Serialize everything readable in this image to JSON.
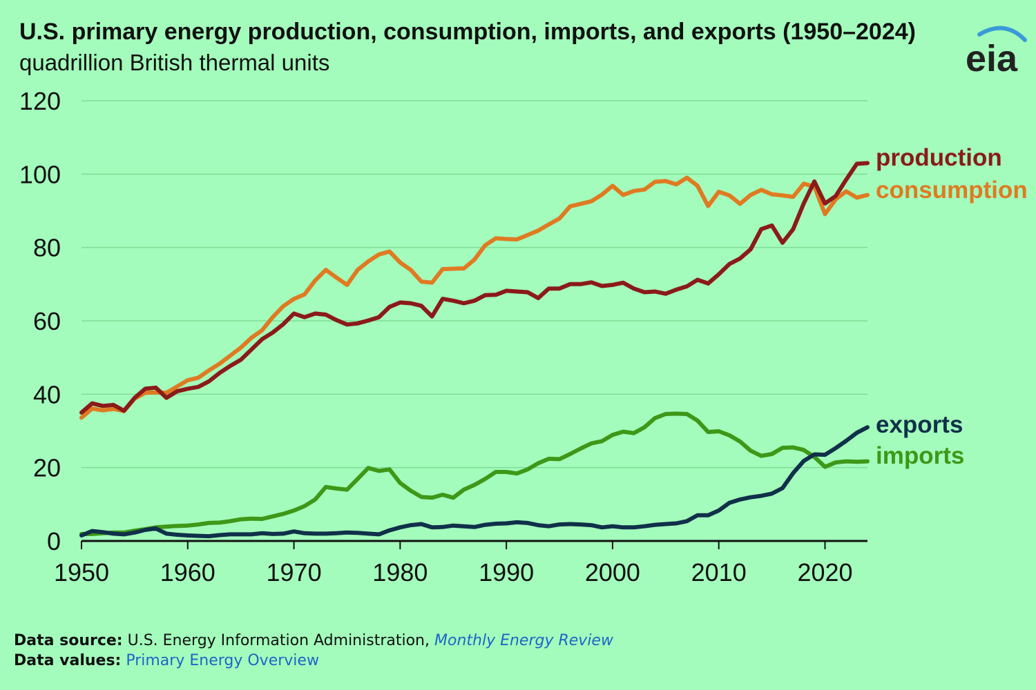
{
  "logo_text": "eia",
  "footer": {
    "source_label": "Data source:",
    "source_text": "U.S. Energy Information Administration,",
    "source_link": "Monthly Energy Review",
    "values_label": "Data values:",
    "values_link": "Primary Energy Overview"
  },
  "chart_data": {
    "type": "line",
    "title": "U.S. primary energy production, consumption, imports, and exports (1950–2024)",
    "subtitle": "quadrillion British thermal units",
    "xlabel": "",
    "ylabel": "",
    "xlim": [
      1950,
      2024
    ],
    "ylim": [
      0,
      120
    ],
    "x_ticks": [
      1950,
      1960,
      1970,
      1980,
      1990,
      2000,
      2010,
      2020
    ],
    "y_ticks": [
      0,
      20,
      40,
      60,
      80,
      100,
      120
    ],
    "grid": true,
    "legend": "inline-right",
    "x": [
      1950,
      1951,
      1952,
      1953,
      1954,
      1955,
      1956,
      1957,
      1958,
      1959,
      1960,
      1961,
      1962,
      1963,
      1964,
      1965,
      1966,
      1967,
      1968,
      1969,
      1970,
      1971,
      1972,
      1973,
      1974,
      1975,
      1976,
      1977,
      1978,
      1979,
      1980,
      1981,
      1982,
      1983,
      1984,
      1985,
      1986,
      1987,
      1988,
      1989,
      1990,
      1991,
      1992,
      1993,
      1994,
      1995,
      1996,
      1997,
      1998,
      1999,
      2000,
      2001,
      2002,
      2003,
      2004,
      2005,
      2006,
      2007,
      2008,
      2009,
      2010,
      2011,
      2012,
      2013,
      2014,
      2015,
      2016,
      2017,
      2018,
      2019,
      2020,
      2021,
      2022,
      2023,
      2024
    ],
    "series": [
      {
        "name": "production",
        "color": "#8b1a1a",
        "values": [
          35.0,
          37.5,
          36.8,
          37.1,
          35.5,
          39.0,
          41.5,
          41.8,
          39.0,
          40.8,
          41.5,
          42.0,
          43.5,
          45.8,
          47.7,
          49.4,
          52.2,
          55.0,
          56.8,
          59.1,
          62.0,
          61.0,
          62.0,
          61.7,
          60.2,
          59.0,
          59.3,
          60.1,
          61.0,
          63.8,
          65.0,
          64.8,
          64.1,
          61.2,
          66.0,
          65.5,
          64.8,
          65.5,
          67.0,
          67.1,
          68.2,
          68.0,
          67.8,
          66.2,
          68.8,
          68.8,
          70.0,
          70.0,
          70.5,
          69.5,
          69.8,
          70.4,
          68.8,
          67.8,
          68.0,
          67.4,
          68.5,
          69.4,
          71.2,
          70.2,
          72.7,
          75.5,
          77.0,
          79.5,
          85.0,
          86.0,
          81.3,
          85.0,
          92.0,
          98.0,
          92.0,
          94.0,
          98.5,
          102.8,
          103.0
        ]
      },
      {
        "name": "consumption",
        "color": "#e07a22",
        "values": [
          33.6,
          36.1,
          35.6,
          36.0,
          35.4,
          38.8,
          40.4,
          40.5,
          40.4,
          42.1,
          43.8,
          44.5,
          46.5,
          48.3,
          50.5,
          52.7,
          55.4,
          57.4,
          61.0,
          64.0,
          66.0,
          67.2,
          71.0,
          73.9,
          71.8,
          69.8,
          73.9,
          76.2,
          78.1,
          78.9,
          75.9,
          73.9,
          70.7,
          70.4,
          74.1,
          74.2,
          74.3,
          76.7,
          80.6,
          82.5,
          82.3,
          82.2,
          83.4,
          84.6,
          86.3,
          87.9,
          91.2,
          91.9,
          92.6,
          94.4,
          96.8,
          94.3,
          95.4,
          95.8,
          97.9,
          98.1,
          97.2,
          99.0,
          96.8,
          91.3,
          95.2,
          94.2,
          91.9,
          94.3,
          95.7,
          94.5,
          94.2,
          93.8,
          97.4,
          96.6,
          89.1,
          93.1,
          95.3,
          93.6,
          94.3
        ]
      },
      {
        "name": "exports",
        "color": "#10304a",
        "values": [
          1.5,
          2.7,
          2.4,
          2.0,
          1.8,
          2.3,
          3.0,
          3.4,
          2.0,
          1.7,
          1.5,
          1.4,
          1.3,
          1.6,
          1.8,
          1.8,
          1.8,
          2.1,
          1.9,
          2.0,
          2.6,
          2.1,
          2.0,
          2.0,
          2.1,
          2.3,
          2.2,
          2.0,
          1.8,
          2.9,
          3.7,
          4.3,
          4.6,
          3.7,
          3.8,
          4.2,
          4.0,
          3.8,
          4.4,
          4.7,
          4.8,
          5.1,
          4.9,
          4.3,
          4.0,
          4.5,
          4.6,
          4.5,
          4.3,
          3.7,
          4.0,
          3.7,
          3.7,
          4.0,
          4.4,
          4.6,
          4.8,
          5.4,
          7.0,
          7.0,
          8.3,
          10.4,
          11.3,
          11.9,
          12.3,
          12.9,
          14.4,
          18.5,
          21.8,
          23.6,
          23.5,
          25.3,
          27.3,
          29.5,
          31.0
        ]
      },
      {
        "name": "imports",
        "color": "#3e9818",
        "values": [
          1.9,
          1.9,
          2.1,
          2.3,
          2.3,
          2.8,
          3.2,
          3.7,
          3.9,
          4.1,
          4.2,
          4.5,
          4.9,
          5.0,
          5.4,
          5.9,
          6.1,
          6.0,
          6.7,
          7.4,
          8.3,
          9.5,
          11.3,
          14.7,
          14.3,
          14.0,
          16.9,
          19.9,
          19.1,
          19.5,
          15.8,
          13.7,
          12.0,
          11.8,
          12.6,
          11.8,
          14.0,
          15.3,
          16.9,
          18.8,
          18.8,
          18.4,
          19.5,
          21.2,
          22.4,
          22.3,
          23.7,
          25.2,
          26.6,
          27.2,
          28.9,
          29.8,
          29.4,
          31.0,
          33.5,
          34.6,
          34.7,
          34.6,
          32.8,
          29.7,
          29.9,
          28.8,
          27.1,
          24.6,
          23.2,
          23.7,
          25.4,
          25.5,
          24.8,
          22.9,
          20.2,
          21.4,
          21.7,
          21.6,
          21.7
        ]
      }
    ]
  }
}
